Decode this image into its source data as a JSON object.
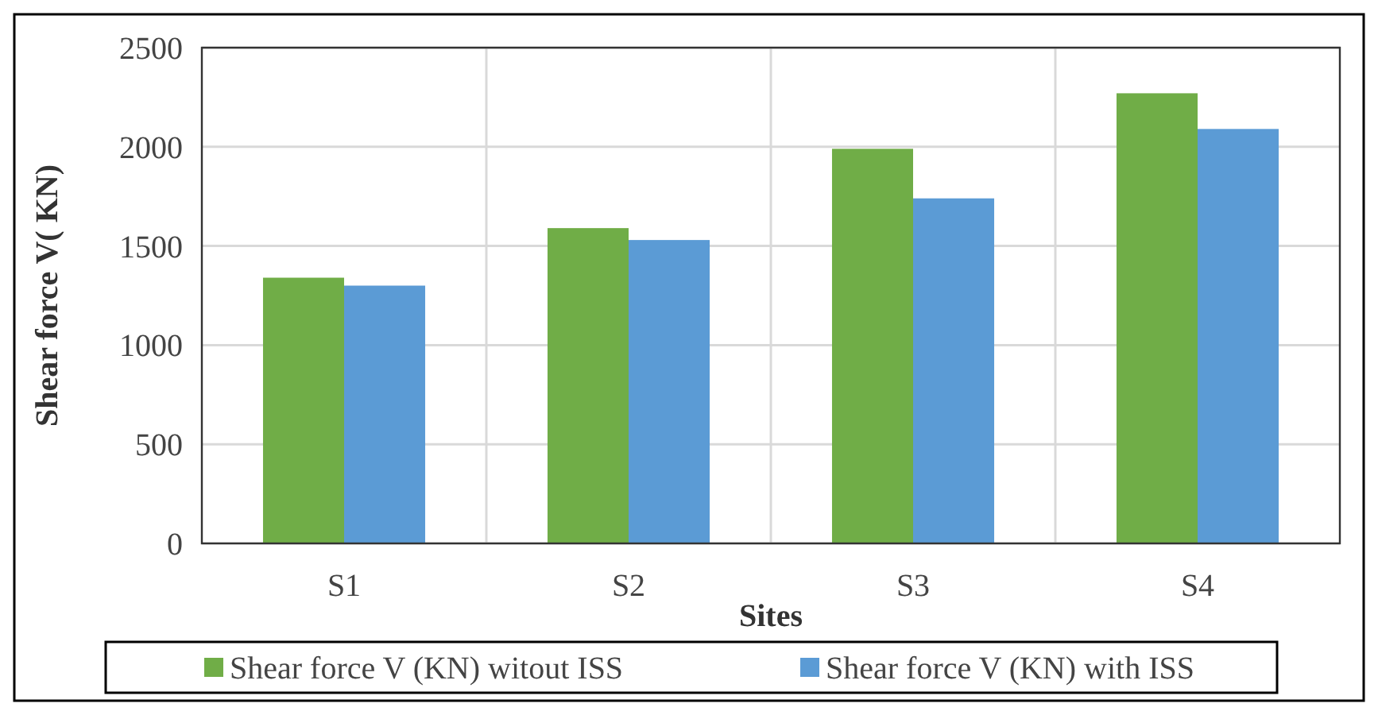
{
  "chart_data": {
    "type": "bar",
    "xlabel": "Sites",
    "ylabel": "Shear force V( KN)",
    "categories": [
      "S1",
      "S2",
      "S3",
      "S4"
    ],
    "series": [
      {
        "name": "Shear force V (KN) witout ISS",
        "color": "#70ad47",
        "values": [
          1340,
          1590,
          1990,
          2270
        ]
      },
      {
        "name": "Shear force V (KN) with ISS",
        "color": "#5b9bd5",
        "values": [
          1300,
          1530,
          1740,
          2090
        ]
      }
    ],
    "ylim": [
      0,
      2500
    ],
    "yticks": [
      0,
      500,
      1000,
      1500,
      2000,
      2500
    ],
    "grid": true,
    "legend": "bottom"
  }
}
